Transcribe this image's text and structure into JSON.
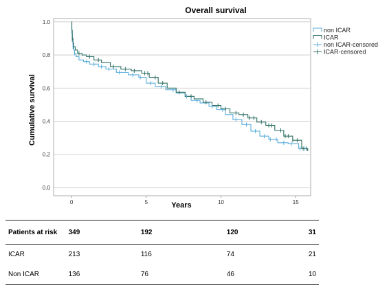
{
  "chart_data": {
    "type": "line",
    "step": true,
    "title": "Overall survival",
    "xlabel": "Years",
    "ylabel": "Cumulative survival",
    "xlim": [
      -1.2,
      16
    ],
    "ylim": [
      -0.05,
      1.02
    ],
    "xticks": [
      0,
      5,
      10,
      15
    ],
    "xtick_labels": [
      "0",
      "5",
      "10",
      "15"
    ],
    "yticks": [
      0.0,
      0.2,
      0.4,
      0.6,
      0.8,
      1.0
    ],
    "ytick_labels": [
      "0.0",
      "0.2",
      "0.4",
      "0.6",
      "0.8",
      "1.0"
    ],
    "grid": "horizontal",
    "legend_position": "top-right",
    "legend": [
      "non ICAR",
      "ICAR",
      "non ICAR-censored",
      "ICAR-censored"
    ],
    "colors": {
      "non ICAR": "#5aaedc",
      "ICAR": "#2e6f64"
    },
    "series": [
      {
        "name": "non ICAR",
        "x": [
          0,
          0.02,
          0.05,
          0.1,
          0.15,
          0.2,
          0.3,
          0.5,
          0.8,
          1.2,
          1.8,
          2.3,
          3.0,
          3.8,
          4.5,
          5.0,
          5.6,
          6.3,
          7.0,
          7.6,
          8.0,
          8.6,
          9.2,
          9.7,
          10.3,
          10.8,
          11.4,
          12.0,
          12.6,
          13.2,
          13.8,
          14.5,
          15.2,
          15.8
        ],
        "y": [
          1.0,
          0.93,
          0.88,
          0.85,
          0.83,
          0.81,
          0.79,
          0.77,
          0.76,
          0.745,
          0.73,
          0.715,
          0.695,
          0.68,
          0.665,
          0.63,
          0.61,
          0.59,
          0.57,
          0.55,
          0.525,
          0.51,
          0.49,
          0.47,
          0.44,
          0.41,
          0.38,
          0.34,
          0.31,
          0.29,
          0.27,
          0.265,
          0.235,
          0.225
        ]
      },
      {
        "name": "ICAR",
        "x": [
          0,
          0.02,
          0.05,
          0.1,
          0.15,
          0.25,
          0.4,
          0.7,
          1.0,
          1.5,
          2.0,
          2.6,
          3.3,
          4.0,
          4.7,
          5.2,
          5.8,
          6.4,
          7.0,
          7.6,
          8.2,
          8.8,
          9.4,
          10.0,
          10.6,
          11.2,
          11.8,
          12.4,
          13.0,
          13.6,
          14.2,
          14.8,
          15.4,
          15.8
        ],
        "y": [
          1.0,
          0.95,
          0.9,
          0.87,
          0.85,
          0.83,
          0.81,
          0.8,
          0.79,
          0.77,
          0.755,
          0.73,
          0.715,
          0.705,
          0.69,
          0.665,
          0.63,
          0.6,
          0.575,
          0.55,
          0.535,
          0.515,
          0.495,
          0.475,
          0.45,
          0.44,
          0.42,
          0.395,
          0.375,
          0.345,
          0.31,
          0.285,
          0.235,
          0.22
        ]
      }
    ],
    "censored": [
      {
        "name": "non ICAR-censored",
        "x": [
          0.1,
          0.2,
          1.0,
          1.5,
          2.0,
          2.5,
          3.2,
          4.1,
          4.6,
          5.3,
          6.0,
          6.8,
          7.7,
          8.4,
          9.4,
          10.1,
          11.0,
          11.7,
          12.3,
          12.9,
          13.3,
          13.7,
          14.2,
          14.7,
          15.3,
          15.6
        ]
      },
      {
        "name": "ICAR-censored",
        "x": [
          0.05,
          0.15,
          0.5,
          1.2,
          1.8,
          2.8,
          3.6,
          4.2,
          4.9,
          5.1,
          5.6,
          6.1,
          7.2,
          8.0,
          9.0,
          9.8,
          10.3,
          11.0,
          11.5,
          11.9,
          12.2,
          12.7,
          13.2,
          13.4,
          14.0,
          14.3,
          14.5,
          14.8,
          15.1,
          15.5,
          15.7
        ]
      }
    ]
  },
  "risk_table": {
    "header_label": "Patients at risk",
    "header_values": [
      "349",
      "192",
      "120",
      "31"
    ],
    "rows": [
      {
        "label": "ICAR",
        "values": [
          "213",
          "116",
          "74",
          "21"
        ]
      },
      {
        "label": "Non ICAR",
        "values": [
          "136",
          "76",
          "46",
          "10"
        ]
      }
    ]
  }
}
